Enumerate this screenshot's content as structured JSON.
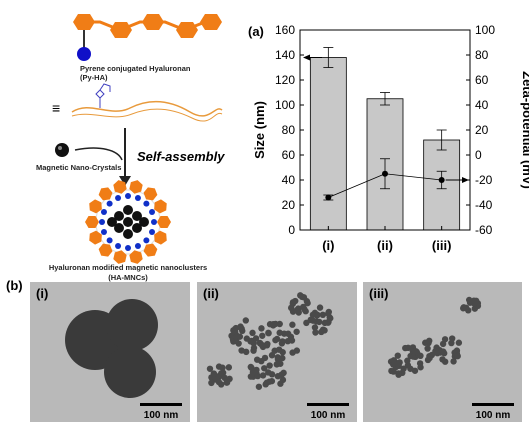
{
  "schematic": {
    "polymer_label": "Pyrene conjugated Hyaluronan",
    "polymer_abbr": "(Py-HA)",
    "equiv": "≡",
    "crystal_label": "Magnetic Nano-Crystals",
    "process": "Self-assembly",
    "cluster_label": "Hyaluronan modified magnetic nanoclusters",
    "cluster_abbr": "(HA-MNCs)"
  },
  "chart_data": {
    "type": "bar",
    "panel_label": "(a)",
    "categories": [
      "(i)",
      "(ii)",
      "(iii)"
    ],
    "ylabel": "Size (nm)",
    "y2label": "Zeta-potential (mV)",
    "series": [
      {
        "color": "#c8c8c8",
        "values": [
          138,
          105,
          72
        ],
        "errors": [
          8,
          5,
          8
        ]
      },
      {
        "type": "line",
        "axis": "y2",
        "color": "#000000",
        "values": [
          -34,
          -15,
          -20
        ],
        "errors": [
          2,
          12,
          7
        ]
      }
    ],
    "ylim": [
      0,
      160
    ],
    "yticks": [
      0,
      20,
      40,
      60,
      80,
      100,
      120,
      140,
      160
    ],
    "y2lim": [
      -60,
      100
    ],
    "y2ticks": [
      -60,
      -40,
      -20,
      0,
      20,
      40,
      60,
      80,
      100
    ]
  },
  "tem": {
    "panel_label": "(b)",
    "images": [
      {
        "label": "(i)",
        "scale": "100 nm"
      },
      {
        "label": "(ii)",
        "scale": "100 nm"
      },
      {
        "label": "(iii)",
        "scale": "100 nm"
      }
    ]
  }
}
